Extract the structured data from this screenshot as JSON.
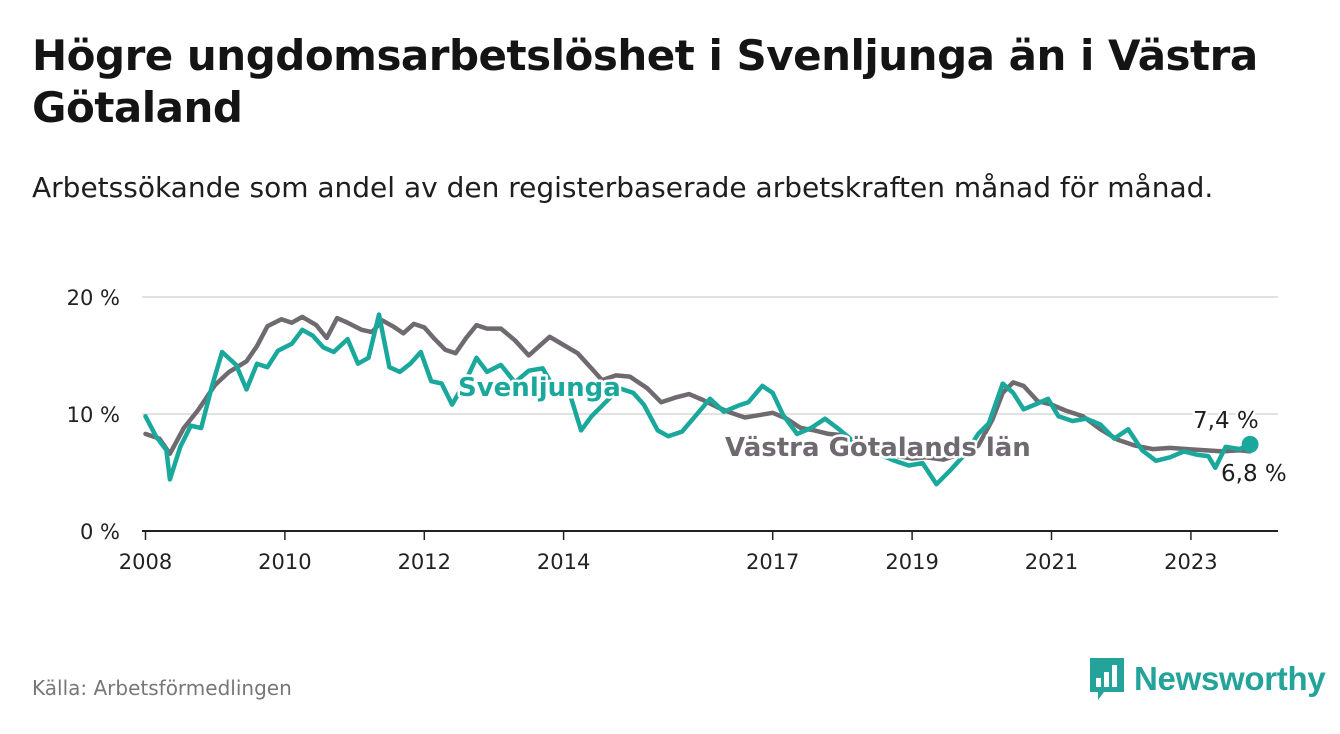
{
  "title": "Högre ungdomsarbetslöshet i Svenljunga än i Västra Götaland",
  "subtitle": "Arbetssökande som andel av den registerbaserade arbetskraften månad för månad.",
  "source": "Källa: Arbetsförmedlingen",
  "brand": {
    "name": "Newsworthy",
    "color": "#24a39a"
  },
  "colors": {
    "svenljunga": "#1aa89c",
    "vastra": "#6f6a70",
    "grid": "#d9d9d9",
    "axis": "#222222"
  },
  "chart_data": {
    "type": "line",
    "title": "Högre ungdomsarbetslöshet i Svenljunga än i Västra Götaland",
    "ylabel": "",
    "xlabel": "",
    "ylim": [
      0,
      20
    ],
    "xlim": [
      2007.95,
      2024.25
    ],
    "y_ticks": [
      {
        "value": 0,
        "label": "0 %"
      },
      {
        "value": 10,
        "label": "10 %"
      },
      {
        "value": 20,
        "label": "20 %"
      }
    ],
    "x_ticks": [
      {
        "value": 2008,
        "label": "2008"
      },
      {
        "value": 2010,
        "label": "2010"
      },
      {
        "value": 2012,
        "label": "2012"
      },
      {
        "value": 2014,
        "label": "2014"
      },
      {
        "value": 2017,
        "label": "2017"
      },
      {
        "value": 2019,
        "label": "2019"
      },
      {
        "value": 2021,
        "label": "2021"
      },
      {
        "value": 2023,
        "label": "2023"
      }
    ],
    "grid": true,
    "series": [
      {
        "name": "Västra Götalands län",
        "label": "Västra Götalands län",
        "color": "#6f6a70",
        "end_label": "6,8 %",
        "points": [
          [
            2008.0,
            8.3
          ],
          [
            2008.2,
            7.9
          ],
          [
            2008.35,
            6.6
          ],
          [
            2008.55,
            8.8
          ],
          [
            2008.75,
            10.3
          ],
          [
            2009.0,
            12.5
          ],
          [
            2009.2,
            13.6
          ],
          [
            2009.45,
            14.5
          ],
          [
            2009.6,
            15.8
          ],
          [
            2009.75,
            17.5
          ],
          [
            2009.95,
            18.1
          ],
          [
            2010.1,
            17.8
          ],
          [
            2010.25,
            18.3
          ],
          [
            2010.45,
            17.6
          ],
          [
            2010.6,
            16.5
          ],
          [
            2010.75,
            18.2
          ],
          [
            2010.9,
            17.8
          ],
          [
            2011.1,
            17.2
          ],
          [
            2011.25,
            17.0
          ],
          [
            2011.4,
            18.0
          ],
          [
            2011.55,
            17.5
          ],
          [
            2011.7,
            16.9
          ],
          [
            2011.85,
            17.7
          ],
          [
            2012.0,
            17.4
          ],
          [
            2012.15,
            16.4
          ],
          [
            2012.3,
            15.5
          ],
          [
            2012.45,
            15.2
          ],
          [
            2012.6,
            16.5
          ],
          [
            2012.75,
            17.6
          ],
          [
            2012.9,
            17.3
          ],
          [
            2013.1,
            17.3
          ],
          [
            2013.3,
            16.3
          ],
          [
            2013.5,
            15.0
          ],
          [
            2013.65,
            15.8
          ],
          [
            2013.8,
            16.6
          ],
          [
            2014.0,
            15.9
          ],
          [
            2014.2,
            15.2
          ],
          [
            2014.4,
            13.9
          ],
          [
            2014.55,
            12.9
          ],
          [
            2014.75,
            13.3
          ],
          [
            2014.95,
            13.2
          ],
          [
            2015.2,
            12.2
          ],
          [
            2015.4,
            11.0
          ],
          [
            2015.6,
            11.4
          ],
          [
            2015.8,
            11.7
          ],
          [
            2016.0,
            11.2
          ],
          [
            2016.2,
            10.6
          ],
          [
            2016.4,
            10.1
          ],
          [
            2016.6,
            9.7
          ],
          [
            2016.8,
            9.9
          ],
          [
            2017.0,
            10.1
          ],
          [
            2017.2,
            9.6
          ],
          [
            2017.4,
            8.8
          ],
          [
            2017.6,
            8.6
          ],
          [
            2017.8,
            8.3
          ],
          [
            2018.0,
            8.2
          ],
          [
            2018.2,
            7.6
          ],
          [
            2018.4,
            7.0
          ],
          [
            2018.6,
            6.6
          ],
          [
            2018.8,
            6.4
          ],
          [
            2019.0,
            6.2
          ],
          [
            2019.2,
            6.3
          ],
          [
            2019.45,
            6.1
          ],
          [
            2019.7,
            6.6
          ],
          [
            2019.95,
            7.3
          ],
          [
            2020.15,
            9.5
          ],
          [
            2020.3,
            11.8
          ],
          [
            2020.45,
            12.7
          ],
          [
            2020.6,
            12.4
          ],
          [
            2020.8,
            11.1
          ],
          [
            2021.0,
            10.8
          ],
          [
            2021.2,
            10.3
          ],
          [
            2021.45,
            9.8
          ],
          [
            2021.7,
            8.7
          ],
          [
            2021.95,
            7.8
          ],
          [
            2022.2,
            7.3
          ],
          [
            2022.45,
            7.0
          ],
          [
            2022.7,
            7.1
          ],
          [
            2022.95,
            7.0
          ],
          [
            2023.2,
            6.9
          ],
          [
            2023.45,
            6.8
          ],
          [
            2023.7,
            6.9
          ],
          [
            2023.85,
            6.8
          ]
        ]
      },
      {
        "name": "Svenljunga",
        "label": "Svenljunga",
        "color": "#1aa89c",
        "end_label": "7,4 %",
        "points": [
          [
            2008.0,
            9.8
          ],
          [
            2008.15,
            8.1
          ],
          [
            2008.3,
            6.9
          ],
          [
            2008.35,
            4.4
          ],
          [
            2008.5,
            7.2
          ],
          [
            2008.65,
            9.0
          ],
          [
            2008.8,
            8.8
          ],
          [
            2008.95,
            12.3
          ],
          [
            2009.1,
            15.3
          ],
          [
            2009.3,
            14.2
          ],
          [
            2009.45,
            12.1
          ],
          [
            2009.6,
            14.3
          ],
          [
            2009.75,
            14.0
          ],
          [
            2009.9,
            15.4
          ],
          [
            2010.1,
            16.0
          ],
          [
            2010.25,
            17.2
          ],
          [
            2010.4,
            16.7
          ],
          [
            2010.55,
            15.7
          ],
          [
            2010.7,
            15.3
          ],
          [
            2010.9,
            16.4
          ],
          [
            2011.05,
            14.3
          ],
          [
            2011.2,
            14.8
          ],
          [
            2011.35,
            18.5
          ],
          [
            2011.5,
            14.0
          ],
          [
            2011.65,
            13.6
          ],
          [
            2011.8,
            14.3
          ],
          [
            2011.95,
            15.3
          ],
          [
            2012.1,
            12.8
          ],
          [
            2012.25,
            12.6
          ],
          [
            2012.4,
            10.8
          ],
          [
            2012.6,
            12.9
          ],
          [
            2012.75,
            14.8
          ],
          [
            2012.9,
            13.6
          ],
          [
            2013.1,
            14.2
          ],
          [
            2013.3,
            12.7
          ],
          [
            2013.5,
            13.7
          ],
          [
            2013.7,
            13.9
          ],
          [
            2013.9,
            11.8
          ],
          [
            2014.1,
            11.5
          ],
          [
            2014.25,
            8.6
          ],
          [
            2014.4,
            9.8
          ],
          [
            2014.6,
            11.0
          ],
          [
            2014.8,
            12.2
          ],
          [
            2015.0,
            11.8
          ],
          [
            2015.15,
            10.8
          ],
          [
            2015.35,
            8.6
          ],
          [
            2015.5,
            8.1
          ],
          [
            2015.7,
            8.5
          ],
          [
            2015.9,
            9.9
          ],
          [
            2016.1,
            11.3
          ],
          [
            2016.3,
            10.2
          ],
          [
            2016.5,
            10.7
          ],
          [
            2016.65,
            11.0
          ],
          [
            2016.85,
            12.4
          ],
          [
            2017.0,
            11.8
          ],
          [
            2017.15,
            9.9
          ],
          [
            2017.35,
            8.3
          ],
          [
            2017.55,
            8.8
          ],
          [
            2017.75,
            9.6
          ],
          [
            2017.95,
            8.7
          ],
          [
            2018.15,
            7.7
          ],
          [
            2018.35,
            7.2
          ],
          [
            2018.55,
            6.5
          ],
          [
            2018.75,
            6.0
          ],
          [
            2018.95,
            5.6
          ],
          [
            2019.15,
            5.8
          ],
          [
            2019.35,
            4.0
          ],
          [
            2019.55,
            5.2
          ],
          [
            2019.75,
            6.5
          ],
          [
            2019.95,
            8.3
          ],
          [
            2020.1,
            9.2
          ],
          [
            2020.3,
            12.6
          ],
          [
            2020.45,
            11.8
          ],
          [
            2020.6,
            10.4
          ],
          [
            2020.8,
            10.9
          ],
          [
            2020.95,
            11.3
          ],
          [
            2021.1,
            9.8
          ],
          [
            2021.3,
            9.4
          ],
          [
            2021.5,
            9.6
          ],
          [
            2021.7,
            9.1
          ],
          [
            2021.9,
            7.9
          ],
          [
            2022.1,
            8.7
          ],
          [
            2022.3,
            6.9
          ],
          [
            2022.5,
            6.0
          ],
          [
            2022.7,
            6.3
          ],
          [
            2022.9,
            6.8
          ],
          [
            2023.1,
            6.5
          ],
          [
            2023.25,
            6.4
          ],
          [
            2023.35,
            5.4
          ],
          [
            2023.5,
            7.2
          ],
          [
            2023.7,
            7.0
          ],
          [
            2023.85,
            7.4
          ]
        ]
      }
    ]
  }
}
